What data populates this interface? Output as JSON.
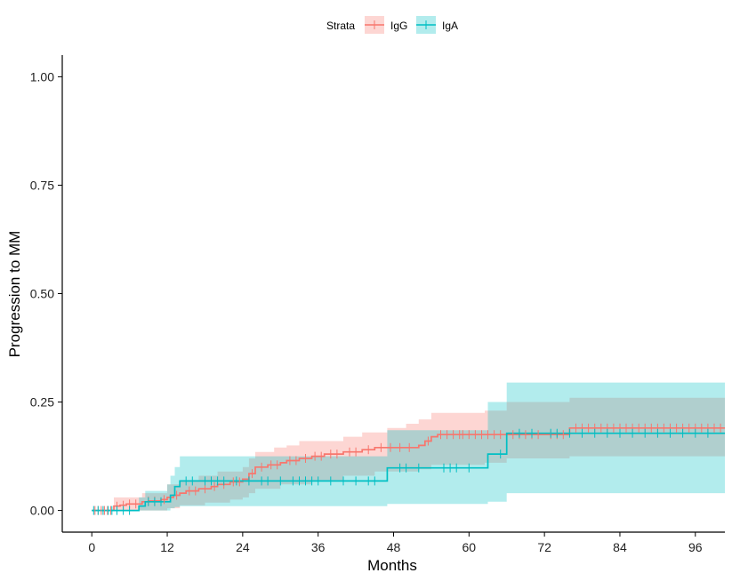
{
  "chart_data": {
    "type": "line",
    "subtype": "step",
    "xlabel": "Months",
    "ylabel": "Progression to MM",
    "xlim": [
      -4.7,
      100.7
    ],
    "ylim": [
      -0.05,
      1.05
    ],
    "xticks": [
      0,
      12,
      24,
      36,
      48,
      60,
      72,
      84,
      96
    ],
    "yticks": [
      0,
      0.25,
      0.5,
      0.75,
      1.0
    ],
    "ytick_labels": [
      "0.00",
      "0.25",
      "0.50",
      "0.75",
      "1.00"
    ],
    "grid": false,
    "legend": {
      "title": "Strata",
      "position": "top"
    },
    "series": [
      {
        "name": "IgG",
        "color": "#F8766D",
        "steps": [
          [
            0,
            0.0
          ],
          [
            3.5,
            0.01
          ],
          [
            4.5,
            0.012
          ],
          [
            5.5,
            0.015
          ],
          [
            8,
            0.02
          ],
          [
            9,
            0.022
          ],
          [
            11,
            0.025
          ],
          [
            12,
            0.03
          ],
          [
            13,
            0.035
          ],
          [
            14,
            0.04
          ],
          [
            15,
            0.045
          ],
          [
            17,
            0.05
          ],
          [
            19,
            0.055
          ],
          [
            20,
            0.06
          ],
          [
            22,
            0.066
          ],
          [
            24,
            0.072
          ],
          [
            25,
            0.085
          ],
          [
            26,
            0.1
          ],
          [
            28,
            0.105
          ],
          [
            30,
            0.11
          ],
          [
            31,
            0.115
          ],
          [
            33,
            0.12
          ],
          [
            35,
            0.125
          ],
          [
            37,
            0.13
          ],
          [
            40,
            0.135
          ],
          [
            43,
            0.14
          ],
          [
            45,
            0.145
          ],
          [
            52,
            0.15
          ],
          [
            53,
            0.16
          ],
          [
            54,
            0.17
          ],
          [
            55,
            0.175
          ],
          [
            76,
            0.19
          ],
          [
            100.7,
            0.19
          ]
        ],
        "lower": [
          [
            0,
            0.0
          ],
          [
            3.5,
            0.0
          ],
          [
            8,
            0.0
          ],
          [
            12,
            0.005
          ],
          [
            14,
            0.012
          ],
          [
            18,
            0.018
          ],
          [
            22,
            0.025
          ],
          [
            24,
            0.03
          ],
          [
            25,
            0.04
          ],
          [
            26,
            0.05
          ],
          [
            30,
            0.06
          ],
          [
            35,
            0.07
          ],
          [
            40,
            0.08
          ],
          [
            45,
            0.09
          ],
          [
            52,
            0.095
          ],
          [
            54,
            0.105
          ],
          [
            62.5,
            0.11
          ],
          [
            66,
            0.12
          ],
          [
            76,
            0.125
          ],
          [
            100.7,
            0.125
          ]
        ],
        "upper": [
          [
            0,
            0.0
          ],
          [
            3.5,
            0.03
          ],
          [
            8,
            0.04
          ],
          [
            12,
            0.06
          ],
          [
            14,
            0.07
          ],
          [
            17,
            0.08
          ],
          [
            20,
            0.09
          ],
          [
            24,
            0.1
          ],
          [
            25,
            0.12
          ],
          [
            26,
            0.135
          ],
          [
            29,
            0.145
          ],
          [
            31,
            0.15
          ],
          [
            33,
            0.16
          ],
          [
            40,
            0.17
          ],
          [
            43,
            0.18
          ],
          [
            47,
            0.19
          ],
          [
            50,
            0.2
          ],
          [
            52,
            0.21
          ],
          [
            54,
            0.225
          ],
          [
            62.5,
            0.23
          ],
          [
            66,
            0.25
          ],
          [
            76,
            0.26
          ],
          [
            100.7,
            0.26
          ]
        ],
        "censor_times": [
          0.5,
          1,
          1.5,
          2,
          2.5,
          3,
          4,
          5,
          6,
          7,
          9,
          10,
          11.5,
          13.5,
          15.5,
          16.5,
          18,
          19.5,
          21,
          22.5,
          23.5,
          25.5,
          27,
          28.5,
          29.5,
          31.5,
          32.5,
          34,
          35.5,
          36.5,
          38,
          39,
          41,
          42,
          44,
          46,
          47.5,
          49,
          50.5,
          53.5,
          55.5,
          56.5,
          57.5,
          58.5,
          59,
          60,
          61,
          62,
          63,
          64,
          65,
          67,
          68,
          69,
          70,
          71,
          73,
          74,
          75,
          77,
          78,
          79,
          80,
          81,
          82,
          83,
          84,
          85,
          86,
          87,
          88,
          89,
          90,
          91,
          92,
          93,
          94,
          95,
          96,
          97,
          98,
          99,
          100
        ]
      },
      {
        "name": "IgA",
        "color": "#00BFC4",
        "steps": [
          [
            0,
            0.0
          ],
          [
            7.5,
            0.01
          ],
          [
            8.5,
            0.02
          ],
          [
            12.5,
            0.035
          ],
          [
            13.2,
            0.055
          ],
          [
            14,
            0.068
          ],
          [
            47,
            0.098
          ],
          [
            63,
            0.13
          ],
          [
            66,
            0.178
          ],
          [
            100.7,
            0.178
          ]
        ],
        "lower": [
          [
            0,
            0.0
          ],
          [
            7.5,
            0.0
          ],
          [
            12.5,
            0.005
          ],
          [
            13.2,
            0.008
          ],
          [
            14,
            0.01
          ],
          [
            47,
            0.015
          ],
          [
            63,
            0.02
          ],
          [
            66,
            0.04
          ],
          [
            100.7,
            0.04
          ]
        ],
        "upper": [
          [
            0,
            0.0
          ],
          [
            7.5,
            0.03
          ],
          [
            8.5,
            0.045
          ],
          [
            12,
            0.06
          ],
          [
            12.5,
            0.08
          ],
          [
            13.2,
            0.1
          ],
          [
            14,
            0.125
          ],
          [
            47,
            0.185
          ],
          [
            63,
            0.25
          ],
          [
            66,
            0.295
          ],
          [
            100.7,
            0.295
          ]
        ],
        "censor_times": [
          0.3,
          1,
          1.8,
          2.6,
          3.2,
          4,
          5,
          6,
          9,
          10,
          11,
          15,
          16,
          18,
          19,
          20,
          21,
          23,
          25,
          27,
          28,
          30,
          32,
          33,
          34,
          35,
          36,
          38,
          40,
          42,
          44,
          45,
          49,
          50,
          52,
          56,
          57,
          58,
          60,
          65,
          68,
          70,
          73,
          74,
          76,
          78,
          80,
          82,
          84,
          86,
          88,
          90,
          92,
          94,
          96,
          98
        ]
      }
    ]
  }
}
